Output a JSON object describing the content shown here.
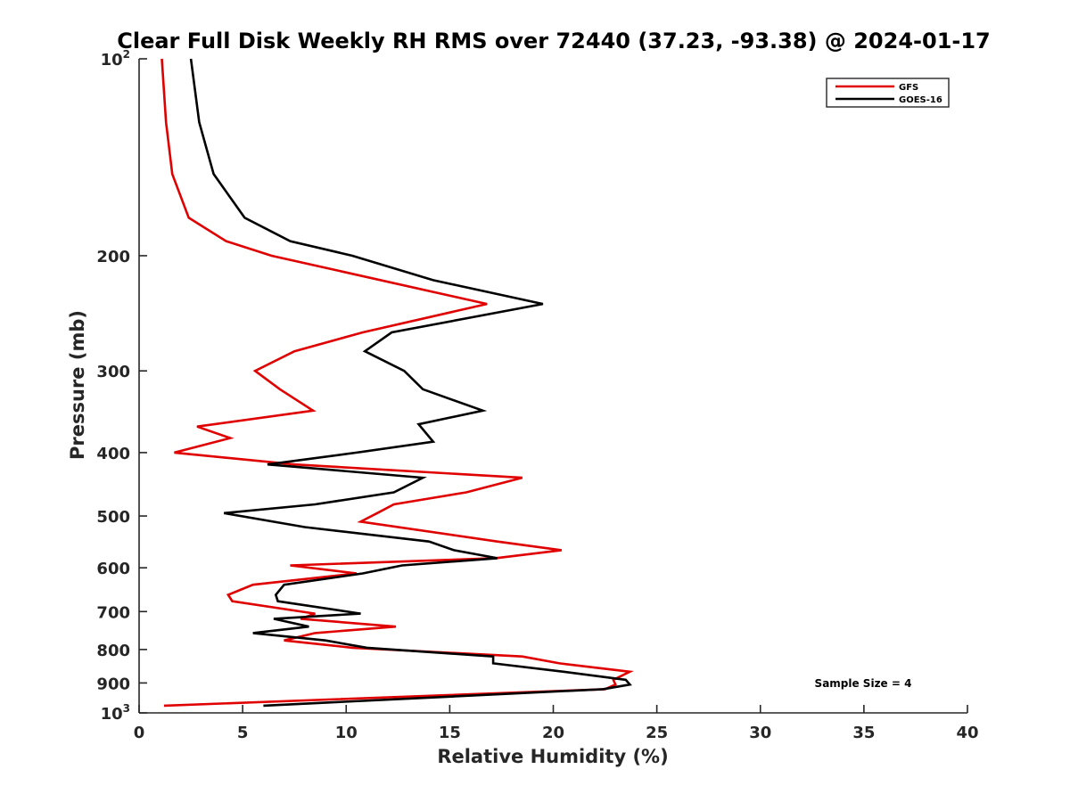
{
  "chart_data": {
    "type": "line",
    "title": "Clear Full Disk Weekly RH RMS over 72440 (37.23, -93.38) @ 2024-01-17",
    "xlabel": "Relative Humidity (%)",
    "ylabel": "Pressure (mb)",
    "xlim": [
      0,
      40
    ],
    "ylim": [
      100,
      1000
    ],
    "y_scale": "log",
    "y_reversed": true,
    "grid": false,
    "legend_position": "top-right",
    "x_ticks": [
      "0",
      "5",
      "10",
      "15",
      "20",
      "25",
      "30",
      "35",
      "40"
    ],
    "y_ticks": [
      {
        "value": 100,
        "base": "10",
        "exp": "2"
      },
      {
        "value": 200,
        "label": "200"
      },
      {
        "value": 300,
        "label": "300"
      },
      {
        "value": 400,
        "label": "400"
      },
      {
        "value": 500,
        "label": "500"
      },
      {
        "value": 600,
        "label": "600"
      },
      {
        "value": 700,
        "label": "700"
      },
      {
        "value": 800,
        "label": "800"
      },
      {
        "value": 900,
        "label": "900"
      },
      {
        "value": 1000,
        "base": "10",
        "exp": "3"
      }
    ],
    "annotation": "Sample Size = 4",
    "series": [
      {
        "name": "GFS",
        "color": "#e00000",
        "points": [
          [
            1.1,
            100
          ],
          [
            1.3,
            125
          ],
          [
            1.6,
            150
          ],
          [
            2.4,
            175
          ],
          [
            4.2,
            190
          ],
          [
            6.4,
            200
          ],
          [
            16.8,
            237
          ],
          [
            10.8,
            262
          ],
          [
            7.5,
            280
          ],
          [
            5.6,
            300
          ],
          [
            6.8,
            320
          ],
          [
            8.4,
            345
          ],
          [
            2.8,
            365
          ],
          [
            4.4,
            380
          ],
          [
            1.7,
            400
          ],
          [
            7.5,
            417
          ],
          [
            18.5,
            437
          ],
          [
            15.8,
            460
          ],
          [
            12.3,
            480
          ],
          [
            11.5,
            495
          ],
          [
            10.7,
            510
          ],
          [
            17.3,
            547
          ],
          [
            20.4,
            564
          ],
          [
            17.2,
            580
          ],
          [
            7.3,
            595
          ],
          [
            10.5,
            612
          ],
          [
            5.5,
            637
          ],
          [
            4.3,
            660
          ],
          [
            4.5,
            675
          ],
          [
            8.5,
            705
          ],
          [
            7.8,
            718
          ],
          [
            12.4,
            738
          ],
          [
            8.5,
            755
          ],
          [
            7.0,
            775
          ],
          [
            10.3,
            795
          ],
          [
            18.5,
            820
          ],
          [
            20.3,
            840
          ],
          [
            23.7,
            865
          ],
          [
            22.9,
            890
          ],
          [
            23.0,
            905
          ],
          [
            22.5,
            920
          ],
          [
            1.2,
            975
          ]
        ]
      },
      {
        "name": "GOES-16",
        "color": "#000000",
        "points": [
          [
            2.5,
            100
          ],
          [
            2.9,
            125
          ],
          [
            3.6,
            150
          ],
          [
            5.1,
            175
          ],
          [
            7.3,
            190
          ],
          [
            10.3,
            200
          ],
          [
            14.2,
            218
          ],
          [
            19.5,
            237
          ],
          [
            12.2,
            262
          ],
          [
            10.9,
            280
          ],
          [
            12.8,
            300
          ],
          [
            13.7,
            320
          ],
          [
            16.6,
            345
          ],
          [
            13.5,
            362
          ],
          [
            14.2,
            385
          ],
          [
            10.5,
            400
          ],
          [
            6.2,
            417
          ],
          [
            13.7,
            437
          ],
          [
            12.3,
            460
          ],
          [
            8.5,
            480
          ],
          [
            4.1,
            495
          ],
          [
            8.0,
            520
          ],
          [
            14.0,
            547
          ],
          [
            15.2,
            564
          ],
          [
            17.3,
            580
          ],
          [
            12.7,
            595
          ],
          [
            10.8,
            612
          ],
          [
            7.0,
            637
          ],
          [
            6.6,
            660
          ],
          [
            6.7,
            675
          ],
          [
            10.7,
            705
          ],
          [
            6.5,
            718
          ],
          [
            8.2,
            738
          ],
          [
            5.5,
            755
          ],
          [
            9.0,
            775
          ],
          [
            11.0,
            795
          ],
          [
            17.1,
            820
          ],
          [
            17.1,
            840
          ],
          [
            20.5,
            865
          ],
          [
            23.5,
            890
          ],
          [
            23.7,
            905
          ],
          [
            22.4,
            920
          ],
          [
            6.0,
            975
          ]
        ]
      }
    ]
  }
}
